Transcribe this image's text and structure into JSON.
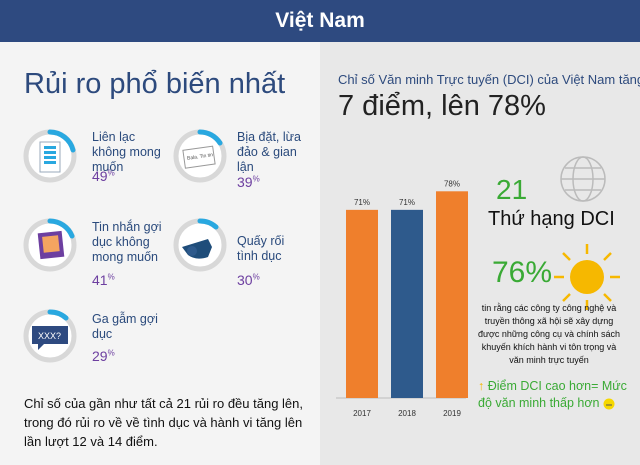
{
  "header": {
    "title": "Việt Nam"
  },
  "left": {
    "title": "Rủi ro phổ biến nhất",
    "risks": [
      {
        "label": "Liên lạc không mong muốn",
        "value": 49,
        "icon": "phone-icon"
      },
      {
        "label": "Bịa đặt, lừa đảo & gian lận",
        "value": 39,
        "icon": "newspaper-icon",
        "icon_text": "Bala, Tin tin"
      },
      {
        "label": "Tin nhắn gợi dục không mong muốn",
        "value": 41,
        "icon": "image-message-icon"
      },
      {
        "label": "Quấy rối tình dục",
        "value": 30,
        "icon": "whistle-icon"
      },
      {
        "label": "Ga gẫm gợi dục",
        "value": 29,
        "icon": "speech-bubble-icon",
        "icon_text": "XXX?"
      }
    ],
    "pct_sign": "%",
    "summary": "Chỉ số của gần như tất cả 21 rủi ro đều tăng lên, trong đó rủi ro về về tình dục và hành vi tăng lên lần lượt 12 và 14 điểm."
  },
  "right": {
    "subtitle": "Chỉ số Văn minh Trực tuyến (DCI) của Việt Nam tăng",
    "headline": "7 điểm, lên 78%",
    "rank_number": "21",
    "rank_label": "Thứ hạng DCI",
    "percent_big": "76%",
    "percent_desc": "tin rằng các công ty công nghệ và truyền thông xã hội sẽ xây dựng được những công cụ và chính sách khuyến khích hành vi tôn trọng và văn minh trực tuyến",
    "note_arrow": "↑",
    "note": "Điểm DCI cao hơn= Mức độ văn minh thấp hơn"
  },
  "colors": {
    "header": "#2e4a80",
    "orange": "#ef7f2c",
    "blue": "#2e5a8c",
    "green": "#3aaa35",
    "purple": "#6d3fa0",
    "ring": "#29a8e0"
  },
  "chart_data": {
    "type": "bar",
    "categories": [
      "2017",
      "2018",
      "2019"
    ],
    "values": [
      71,
      71,
      78
    ],
    "data_labels": [
      "71%",
      "71%",
      "78%"
    ],
    "bar_colors": [
      "#ef7f2c",
      "#2e5a8c",
      "#ef7f2c"
    ],
    "ylim": [
      0,
      80
    ],
    "grid": false,
    "title": "",
    "xlabel": "",
    "ylabel": ""
  }
}
